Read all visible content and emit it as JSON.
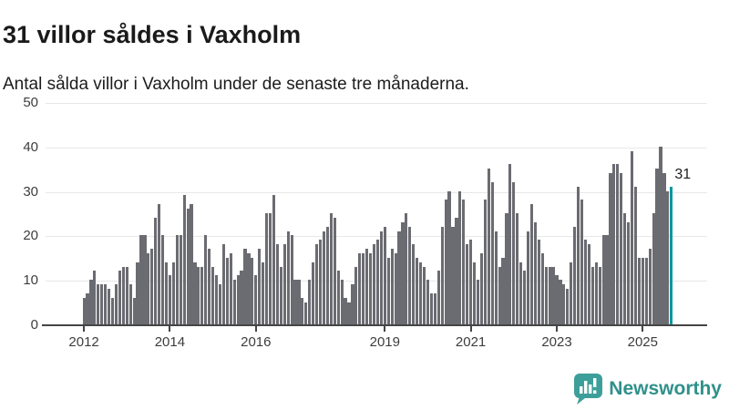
{
  "header": {
    "title": "31 villor såldes i Vaxholm",
    "subtitle": "Antal sålda villor i Vaxholm under de senaste tre månaderna."
  },
  "chart_data": {
    "type": "bar",
    "frequency": "monthly",
    "x_start": "2012-01",
    "values": [
      6,
      7,
      10,
      12,
      9,
      9,
      9,
      8,
      6,
      9,
      12,
      13,
      13,
      9,
      6,
      14,
      20,
      20,
      16,
      17,
      24,
      27,
      20,
      14,
      11,
      14,
      20,
      20,
      29,
      26,
      27,
      14,
      13,
      13,
      20,
      17,
      13,
      11,
      9,
      18,
      15,
      16,
      10,
      11,
      12,
      17,
      16,
      15,
      11,
      17,
      14,
      25,
      25,
      29,
      18,
      13,
      18,
      21,
      20,
      10,
      10,
      6,
      5,
      10,
      14,
      18,
      19,
      21,
      22,
      25,
      24,
      12,
      10,
      6,
      5,
      9,
      13,
      16,
      16,
      17,
      16,
      18,
      19,
      21,
      22,
      15,
      17,
      16,
      21,
      23,
      25,
      22,
      18,
      15,
      14,
      13,
      10,
      7,
      7,
      12,
      22,
      28,
      30,
      22,
      24,
      30,
      28,
      18,
      19,
      14,
      10,
      16,
      28,
      35,
      32,
      21,
      13,
      15,
      25,
      36,
      32,
      25,
      14,
      12,
      21,
      27,
      23,
      19,
      16,
      13,
      13,
      13,
      11,
      10,
      9,
      8,
      14,
      22,
      31,
      28,
      19,
      18,
      13,
      14,
      13,
      20,
      20,
      34,
      36,
      36,
      34,
      25,
      23,
      39,
      31,
      15,
      15,
      15,
      17,
      25,
      35,
      40,
      34,
      30,
      31
    ],
    "highlight_index": 164,
    "annotation": {
      "text": "31",
      "value": 31
    },
    "ylim": [
      0,
      50
    ],
    "y_ticks": [
      0,
      10,
      20,
      30,
      40,
      50
    ],
    "x_ticks": [
      {
        "label": "2012",
        "month_index": 0
      },
      {
        "label": "2014",
        "month_index": 24
      },
      {
        "label": "2016",
        "month_index": 48
      },
      {
        "label": "2019",
        "month_index": 84
      },
      {
        "label": "2021",
        "month_index": 108
      },
      {
        "label": "2023",
        "month_index": 132
      },
      {
        "label": "2025",
        "month_index": 156
      }
    ],
    "grid": true,
    "legend": false,
    "colors": {
      "bar": "#6b6b72",
      "highlight": "#00979e",
      "grid": "#e8e8e8",
      "axis": "#454545",
      "tick_label": "#3d3d3d"
    }
  },
  "footer": {
    "brand": "Newsworthy",
    "brand_color": "#2f908b",
    "icon": "newsworthy-bar-chart-speech-bubble",
    "icon_color": "#3d9f99"
  }
}
